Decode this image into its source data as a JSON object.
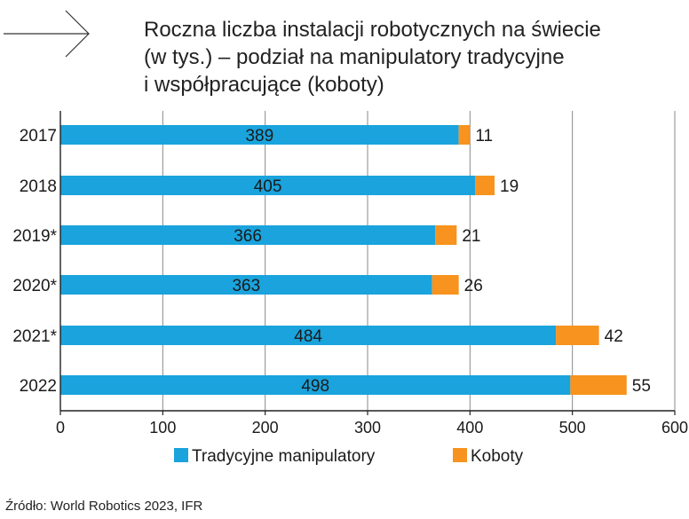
{
  "title_lines": [
    "Roczna liczba instalacji robotycznych na świecie",
    "(w tys.) – podział na manipulatory tradycyjne",
    "i współpracujące (koboty)"
  ],
  "source": "Źródło: World Robotics 2023, IFR",
  "chart_data": {
    "type": "bar",
    "orientation": "horizontal",
    "stacked": true,
    "categories": [
      "2017",
      "2018",
      "2019*",
      "2020*",
      "2021*",
      "2022"
    ],
    "series": [
      {
        "name": "Tradycyjne manipulatory",
        "values": [
          389,
          405,
          366,
          363,
          484,
          498
        ],
        "color": "#1aa3dc",
        "label_position": "center"
      },
      {
        "name": "Koboty",
        "values": [
          11,
          19,
          21,
          26,
          42,
          55
        ],
        "color": "#f7931e",
        "label_position": "outside-end"
      }
    ],
    "xlim": [
      0,
      600
    ],
    "xticks": [
      0,
      100,
      200,
      300,
      400,
      500,
      600
    ],
    "grid": "vertical",
    "legend": "bottom"
  },
  "colors": {
    "grid": "#888888",
    "axis": "#222222",
    "text": "#1a1a1a"
  }
}
